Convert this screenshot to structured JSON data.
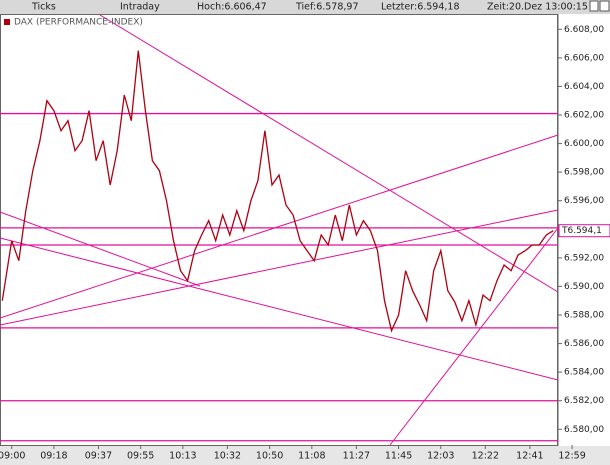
{
  "header": {
    "mode": "Ticks",
    "range": "Intraday",
    "high": "Hoch:6.606,47",
    "low": "Tief:6.578,97",
    "last": "Letzter:6.594,18",
    "time": "Zeit:20.Dez 13:00:15"
  },
  "chart_data": {
    "type": "line",
    "legend": "DAX (PERFORMANCE-INDEX)",
    "last_label": "T6.594,1",
    "xlim": [
      "08:55",
      "12:53"
    ],
    "ylim": [
      6578.9,
      6609
    ],
    "xticks": [
      "09:00",
      "09:18",
      "09:37",
      "09:55",
      "10:13",
      "10:32",
      "10:50",
      "11:08",
      "11:27",
      "11:45",
      "12:03",
      "12:22",
      "12:41",
      "12:59"
    ],
    "yticks": [
      {
        "value": 6608,
        "label": "6.608,00"
      },
      {
        "value": 6606,
        "label": "6.606,00"
      },
      {
        "value": 6604,
        "label": "6.604,00"
      },
      {
        "value": 6602,
        "label": "6.602,00"
      },
      {
        "value": 6600,
        "label": "6.600,00"
      },
      {
        "value": 6598,
        "label": "6.598,00"
      },
      {
        "value": 6596,
        "label": "6.596,00"
      },
      {
        "value": 6594,
        "label": "6.594,00"
      },
      {
        "value": 6592,
        "label": "6.592,00"
      },
      {
        "value": 6590,
        "label": "6.590,00"
      },
      {
        "value": 6588,
        "label": "6.588,00"
      },
      {
        "value": 6586,
        "label": "6.586,00"
      },
      {
        "value": 6584,
        "label": "6.584,00"
      },
      {
        "value": 6582,
        "label": "6.582,00"
      },
      {
        "value": 6580,
        "label": "6.580,00"
      }
    ],
    "levels": [
      6602.1,
      6594.1,
      6592.9,
      6587.1,
      6582.0,
      6579.2
    ],
    "level_color": "#e0109a",
    "series": [
      {
        "color": "#b00010",
        "x": [
          "08:56",
          "09:00",
          "09:03",
          "09:06",
          "09:09",
          "09:12",
          "09:15",
          "09:18",
          "09:21",
          "09:24",
          "09:27",
          "09:30",
          "09:33",
          "09:36",
          "09:39",
          "09:42",
          "09:45",
          "09:48",
          "09:51",
          "09:54",
          "09:57",
          "10:00",
          "10:03",
          "10:06",
          "10:09",
          "10:12",
          "10:15",
          "10:18",
          "10:21",
          "10:24",
          "10:27",
          "10:30",
          "10:33",
          "10:36",
          "10:39",
          "10:42",
          "10:45",
          "10:48",
          "10:51",
          "10:54",
          "10:57",
          "11:00",
          "11:03",
          "11:06",
          "11:09",
          "11:12",
          "11:15",
          "11:18",
          "11:21",
          "11:24",
          "11:27",
          "11:30",
          "11:33",
          "11:36",
          "11:39",
          "11:42",
          "11:45",
          "11:48",
          "11:51",
          "11:54",
          "11:57",
          "12:00",
          "12:03",
          "12:06",
          "12:09",
          "12:12",
          "12:15",
          "12:18",
          "12:21",
          "12:24",
          "12:27",
          "12:30",
          "12:33",
          "12:36",
          "12:39",
          "12:42",
          "12:45",
          "12:48",
          "12:51"
        ],
        "values": [
          6589.0,
          6593.2,
          6591.8,
          6595.3,
          6598.1,
          6600.2,
          6603.0,
          6602.3,
          6600.9,
          6601.6,
          6599.5,
          6600.2,
          6602.3,
          6598.8,
          6600.2,
          6597.1,
          6599.5,
          6603.4,
          6601.6,
          6606.5,
          6602.3,
          6598.8,
          6598.1,
          6596.0,
          6593.2,
          6591.1,
          6590.4,
          6592.5,
          6593.6,
          6594.6,
          6593.2,
          6595.0,
          6593.6,
          6595.3,
          6593.9,
          6596.0,
          6597.4,
          6600.9,
          6597.1,
          6597.8,
          6595.7,
          6595.0,
          6593.2,
          6592.5,
          6591.8,
          6593.6,
          6592.9,
          6595.0,
          6593.2,
          6595.7,
          6593.6,
          6594.6,
          6593.9,
          6592.5,
          6589.0,
          6586.9,
          6588.0,
          6591.1,
          6589.7,
          6588.7,
          6587.6,
          6591.1,
          6592.5,
          6589.7,
          6588.9,
          6587.6,
          6589.0,
          6587.3,
          6589.4,
          6589.0,
          6590.4,
          6591.5,
          6591.1,
          6592.2,
          6592.5,
          6592.9,
          6592.9,
          6593.6,
          6593.9
        ]
      }
    ]
  }
}
